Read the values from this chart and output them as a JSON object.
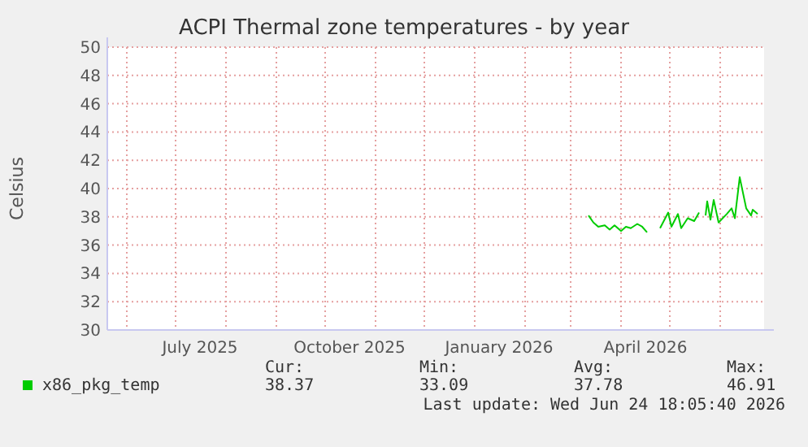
{
  "chart_data": {
    "type": "line",
    "title": "ACPI Thermal zone temperatures - by year",
    "ylabel": "Celsius",
    "x": [
      "2026-03-12",
      "2026-03-15",
      "2026-03-18",
      "2026-03-22",
      "2026-03-25",
      "2026-03-28",
      "2026-04-01",
      "2026-04-04",
      "2026-04-07",
      "2026-04-11",
      "2026-04-14",
      "2026-04-17",
      "2026-04-21",
      "2026-04-25",
      "2026-04-30",
      "2026-05-02",
      "2026-05-06",
      "2026-05-08",
      "2026-05-12",
      "2026-05-16",
      "2026-05-19",
      "2026-05-21",
      "2026-05-23",
      "2026-05-24",
      "2026-05-26",
      "2026-05-28",
      "2026-05-31",
      "2026-06-05",
      "2026-06-08",
      "2026-06-10",
      "2026-06-13",
      "2026-06-17",
      "2026-06-20",
      "2026-06-21",
      "2026-06-24"
    ],
    "series": [
      {
        "name": "x86_pkg_temp",
        "color": "#00cc00",
        "values": [
          38.1,
          37.6,
          37.3,
          37.4,
          37.1,
          37.4,
          37.0,
          37.3,
          37.2,
          37.5,
          37.3,
          36.9,
          null,
          37.2,
          38.3,
          37.3,
          38.2,
          37.2,
          37.9,
          37.7,
          38.3,
          null,
          38.1,
          39.1,
          37.8,
          39.2,
          37.6,
          38.2,
          38.6,
          37.9,
          40.8,
          38.6,
          38.1,
          38.5,
          38.2
        ]
      }
    ],
    "xlim": [
      "2025-05-20",
      "2026-06-28"
    ],
    "xticks": [
      {
        "value": "2025-06-01",
        "label": null
      },
      {
        "value": "2025-07-01",
        "label": null
      },
      {
        "value": "2025-07-16",
        "label": "July 2025"
      },
      {
        "value": "2025-08-01",
        "label": null
      },
      {
        "value": "2025-09-01",
        "label": null
      },
      {
        "value": "2025-10-01",
        "label": null
      },
      {
        "value": "2025-10-16",
        "label": "October 2025"
      },
      {
        "value": "2025-11-01",
        "label": null
      },
      {
        "value": "2025-12-01",
        "label": null
      },
      {
        "value": "2026-01-01",
        "label": null
      },
      {
        "value": "2026-01-16",
        "label": "January 2026"
      },
      {
        "value": "2026-02-01",
        "label": null
      },
      {
        "value": "2026-03-01",
        "label": null
      },
      {
        "value": "2026-04-01",
        "label": null
      },
      {
        "value": "2026-04-16",
        "label": "April 2026"
      },
      {
        "value": "2026-05-01",
        "label": null
      },
      {
        "value": "2026-06-01",
        "label": null
      }
    ],
    "ylim": [
      30,
      50
    ],
    "yticks": [
      30,
      32,
      34,
      36,
      38,
      40,
      42,
      44,
      46,
      48,
      50
    ],
    "grid": true,
    "legend": "bottom",
    "line_style": "solid",
    "marker": "none",
    "annotations": [
      "Cur:",
      "Min:",
      "Avg:",
      "Max:",
      "38.37",
      "33.09",
      "37.78",
      "46.91",
      "Last update: Wed Jun 24 18:05:40 2026"
    ]
  }
}
